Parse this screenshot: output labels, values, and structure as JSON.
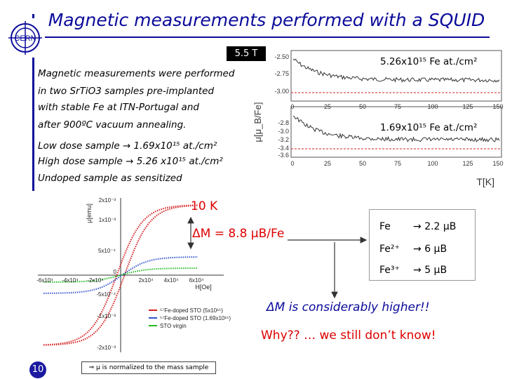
{
  "title": "Magnetic measurements performed with a SQUID",
  "logo_text": "CERN",
  "temperature_tag": "5.5 T",
  "intro_lines": [
    "Magnetic measurements were performed",
    "in two SrTiO3 samples pre-implanted",
    "with stable Fe at ITN-Portugal and",
    "after 900ºC vacuum annealing."
  ],
  "doses": {
    "low": "Low dose sample  → 1.69x10¹⁵ at./cm²",
    "high": "High dose sample → 5.26 x10¹⁵ at./cm²",
    "undoped": "Undoped sample as sensitized"
  },
  "top_chart": {
    "high_label": "5.26x10¹⁵ Fe at./cm²",
    "low_label": "1.69x10¹⁵ Fe at./cm²",
    "ylabel": "μ[μ_B/Fe]",
    "xlabel": "T[K]",
    "upper_yticks": [
      "-2.50",
      "-2.75",
      "-3.00"
    ],
    "lower_yticks": [
      "-2.8",
      "-3.0",
      "-3.2",
      "-3.4",
      "-3.6"
    ],
    "xticks": [
      "0",
      "25",
      "50",
      "75",
      "100",
      "125",
      "150"
    ]
  },
  "hysteresis": {
    "temp": "10 K",
    "ylabel": "μ[emu]",
    "xlabel": "H[Oe]",
    "yticks": [
      "2x10⁻³",
      "1x10⁻³",
      "5x10⁻⁴",
      "0",
      "-5x10⁻⁴",
      "-1x10⁻³",
      "-2x10⁻³"
    ],
    "xticks": [
      "-6x10⁴",
      "-4x10⁴",
      "-2x10⁴",
      "0",
      "2x10⁴",
      "4x10⁴",
      "6x10⁴"
    ],
    "legend": [
      "⁵⁷Fe-doped STO (5x10¹⁵)",
      "⁵⁷Fe-doped STO (1.69x10¹⁵)",
      "STO virgin"
    ],
    "colors": [
      "#d42020",
      "#3355cc",
      "#22bb22"
    ]
  },
  "delta_m": "ΔM = 8.8  μB/Fe",
  "moments": [
    {
      "ion": "Fe",
      "value": "2.2 μB"
    },
    {
      "ion": "Fe²⁺",
      "value": "6 μB"
    },
    {
      "ion": "Fe³⁺",
      "value": "5 μB"
    }
  ],
  "conclusion": "ΔM is considerably higher!!",
  "question": "Why?? … we still don’t know!",
  "page_number": "10",
  "footnote": "⇒ μ is normalized to the mass sample"
}
